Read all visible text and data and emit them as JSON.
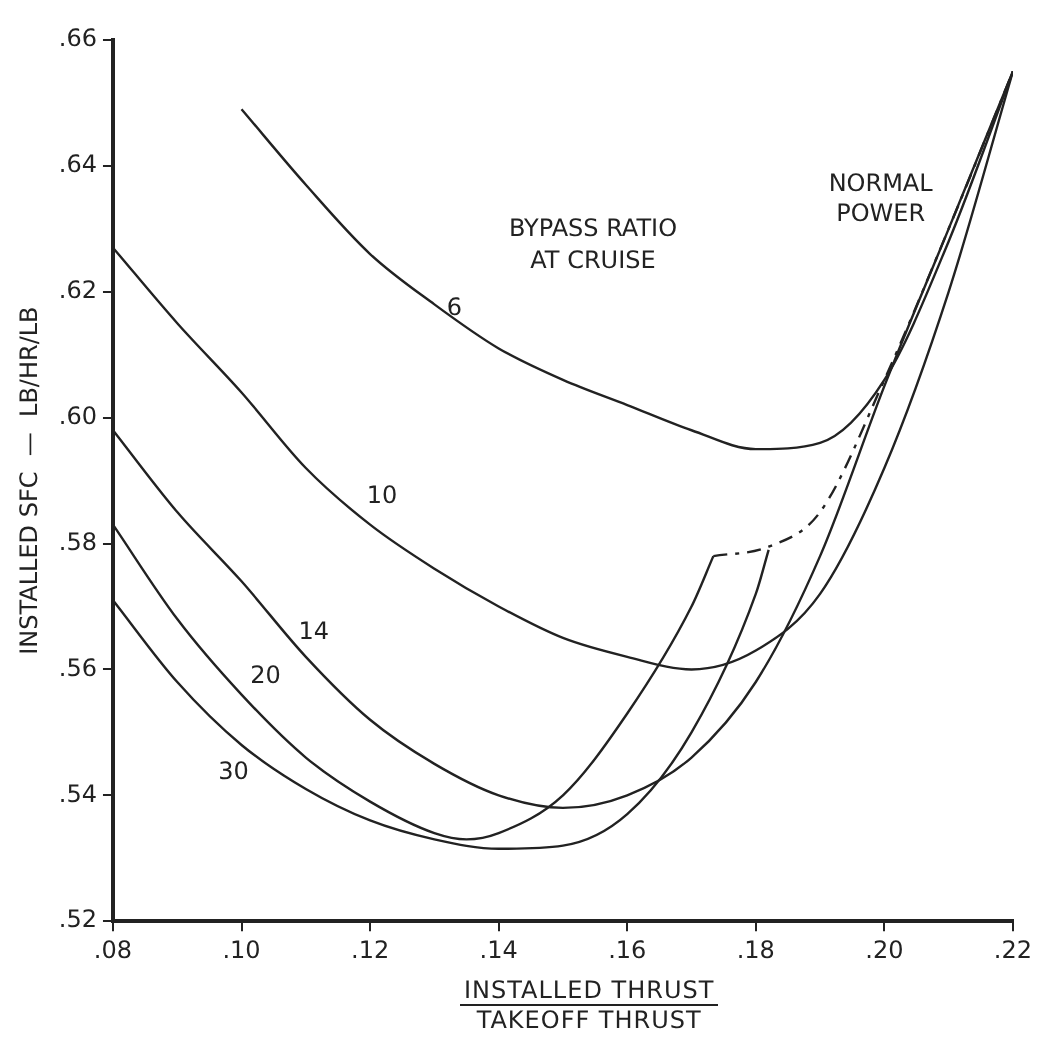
{
  "chart_data": {
    "type": "line",
    "xlabel": "INSTALLED THRUST\nTAKEOFF THRUST",
    "ylabel": "INSTALLED SFC  —  LB/HR/LB",
    "annotations": [
      "BYPASS RATIO\nAT CRUISE"
    ],
    "xlim": [
      0.08,
      0.22
    ],
    "xticks": [
      {
        "value": 0.08,
        "label": ".08"
      },
      {
        "value": 0.1,
        "label": ".10"
      },
      {
        "value": 0.12,
        "label": ".12"
      },
      {
        "value": 0.14,
        "label": ".14"
      },
      {
        "value": 0.16,
        "label": ".16"
      },
      {
        "value": 0.18,
        "label": ".18"
      },
      {
        "value": 0.2,
        "label": ".20"
      },
      {
        "value": 0.22,
        "label": ".22"
      }
    ],
    "ylim": [
      0.52,
      0.66
    ],
    "yticks": [
      {
        "value": 0.52,
        "label": ".52"
      },
      {
        "value": 0.54,
        "label": ".54"
      },
      {
        "value": 0.56,
        "label": ".56"
      },
      {
        "value": 0.58,
        "label": ".58"
      },
      {
        "value": 0.6,
        "label": ".60"
      },
      {
        "value": 0.62,
        "label": ".62"
      },
      {
        "value": 0.64,
        "label": ".64"
      },
      {
        "value": 0.66,
        "label": ".66"
      }
    ],
    "grid": false,
    "legend": false,
    "marker": "none",
    "series": [
      {
        "name": "6",
        "color": "#222222",
        "x": [
          0.1,
          0.11,
          0.12,
          0.13,
          0.14,
          0.15,
          0.16,
          0.17,
          0.18,
          0.19,
          0.2,
          0.21,
          0.22
        ],
        "values": [
          0.649,
          0.637,
          0.626,
          0.618,
          0.611,
          0.606,
          0.602,
          0.598,
          0.595,
          0.596,
          0.606,
          0.628,
          0.655
        ]
      },
      {
        "name": "10",
        "color": "#222222",
        "x": [
          0.08,
          0.09,
          0.1,
          0.11,
          0.12,
          0.13,
          0.14,
          0.15,
          0.16,
          0.17,
          0.18,
          0.19,
          0.2,
          0.21,
          0.22
        ],
        "values": [
          0.627,
          0.615,
          0.604,
          0.592,
          0.583,
          0.576,
          0.57,
          0.565,
          0.562,
          0.56,
          0.563,
          0.572,
          0.592,
          0.62,
          0.655
        ]
      },
      {
        "name": "14",
        "color": "#222222",
        "x": [
          0.08,
          0.09,
          0.1,
          0.11,
          0.12,
          0.13,
          0.14,
          0.15,
          0.16,
          0.17,
          0.18,
          0.19,
          0.2,
          0.21,
          0.22
        ],
        "values": [
          0.598,
          0.585,
          0.574,
          0.562,
          0.552,
          0.545,
          0.54,
          0.538,
          0.54,
          0.546,
          0.558,
          0.578,
          0.605,
          0.63,
          0.655
        ]
      },
      {
        "name": "20",
        "color": "#222222",
        "x": [
          0.08,
          0.09,
          0.1,
          0.11,
          0.12,
          0.13,
          0.135,
          0.14,
          0.15,
          0.16,
          0.17,
          0.1734
        ],
        "values": [
          0.583,
          0.568,
          0.556,
          0.546,
          0.539,
          0.534,
          0.533,
          0.534,
          0.54,
          0.553,
          0.57,
          0.578
        ]
      },
      {
        "name": "30",
        "color": "#222222",
        "x": [
          0.08,
          0.09,
          0.1,
          0.11,
          0.12,
          0.13,
          0.14,
          0.15,
          0.16,
          0.17,
          0.18,
          0.182
        ],
        "values": [
          0.571,
          0.558,
          0.548,
          0.541,
          0.536,
          0.533,
          0.5315,
          0.532,
          0.537,
          0.55,
          0.572,
          0.579
        ]
      },
      {
        "name": "NORMAL POWER",
        "color": "#222222",
        "line_style": "dashed",
        "x": [
          0.1734,
          0.182,
          0.19,
          0.2,
          0.21,
          0.22
        ],
        "values": [
          0.578,
          0.5795,
          0.585,
          0.606,
          0.63,
          0.655
        ]
      }
    ]
  }
}
